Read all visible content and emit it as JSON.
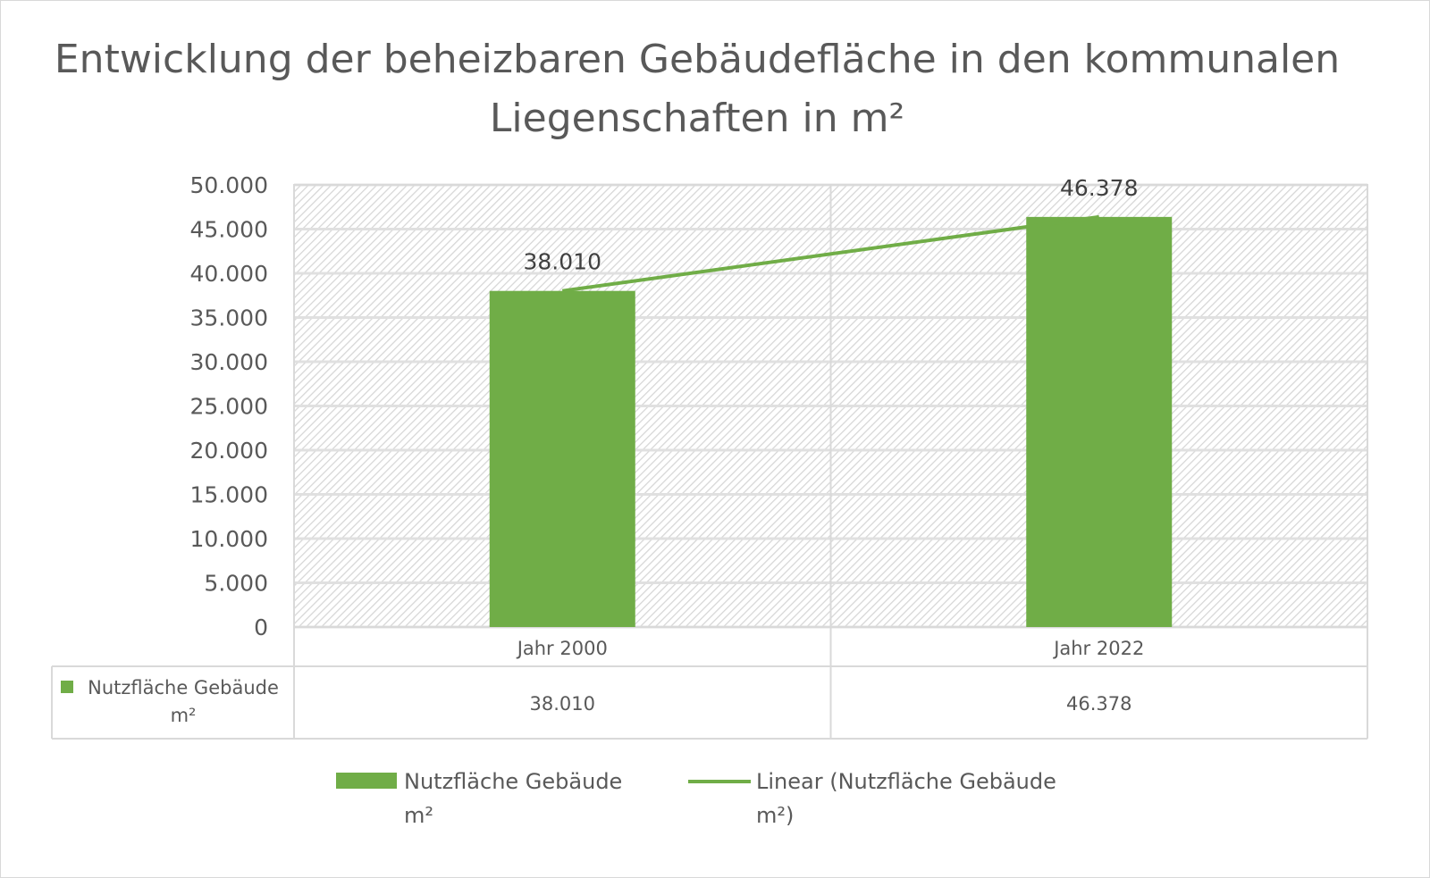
{
  "chart_data": {
    "type": "bar",
    "title": "Entwicklung der beheizbaren Gebäudefläche in den kommunalen Liegenschaften in m²",
    "categories": [
      "Jahr 2000",
      "Jahr 2022"
    ],
    "series": [
      {
        "name": "Nutzfläche Gebäude m²",
        "values": [
          38010,
          46378
        ],
        "labels": [
          "38.010",
          "46.378"
        ],
        "color": "#70AD47"
      }
    ],
    "trendline": {
      "name": "Linear (Nutzfläche Gebäude m²)",
      "type": "linear",
      "color": "#70AD47"
    },
    "ylim": [
      0,
      50000
    ],
    "yticks": [
      0,
      5000,
      10000,
      15000,
      20000,
      25000,
      30000,
      35000,
      40000,
      45000,
      50000
    ],
    "ytick_labels": [
      "0",
      "5.000",
      "10.000",
      "15.000",
      "20.000",
      "25.000",
      "30.000",
      "35.000",
      "40.000",
      "45.000",
      "50.000"
    ],
    "grid": true,
    "plot_background": "hatched light gray",
    "data_table": {
      "row_label": "Nutzfläche Gebäude m²",
      "values": [
        "38.010",
        "46.378"
      ]
    },
    "legend_position": "bottom",
    "legend": [
      "Nutzfläche Gebäude m²",
      "Linear (Nutzfläche Gebäude m²)"
    ]
  }
}
